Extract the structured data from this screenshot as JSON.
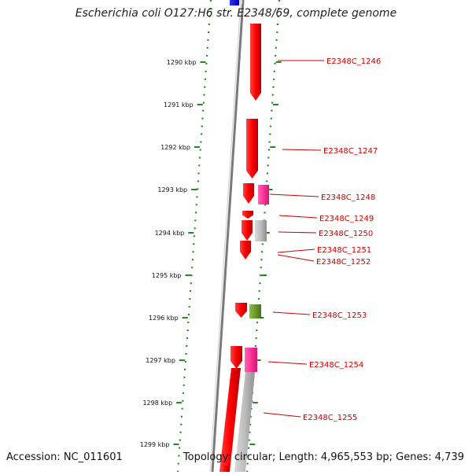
{
  "title": "Escherichia coli O127:H6 str. E2348/69, complete genome",
  "accession_text": "Accession: NC_011601",
  "summary_text": "Topology: circular; Length: 4,965,553 bp; Genes: 4,739",
  "colors": {
    "cds": "#ff0000",
    "pink": "#ff3399",
    "gray": "#b0b0b0",
    "olive": "#6b9a2a",
    "blue": "#0000cc",
    "dots": "#228b22",
    "backbone": "#7a7a7a",
    "label": "#cc0000",
    "leader": "#cc0000"
  },
  "ticks": [
    {
      "label": "1290 kbp"
    },
    {
      "label": "1291 kbp"
    },
    {
      "label": "1292 kbp"
    },
    {
      "label": "1293 kbp"
    },
    {
      "label": "1294 kbp"
    },
    {
      "label": "1295 kbp"
    },
    {
      "label": "1296 kbp"
    },
    {
      "label": "1297 kbp"
    },
    {
      "label": "1298 kbp"
    },
    {
      "label": "1299 kbp"
    }
  ],
  "gene_labels": [
    "E2348C_1246",
    "E2348C_1247",
    "E2348C_1248",
    "E2348C_1249",
    "E2348C_1250",
    "E2348C_1251",
    "E2348C_1252",
    "E2348C_1253",
    "E2348C_1254",
    "E2348C_1255"
  ]
}
